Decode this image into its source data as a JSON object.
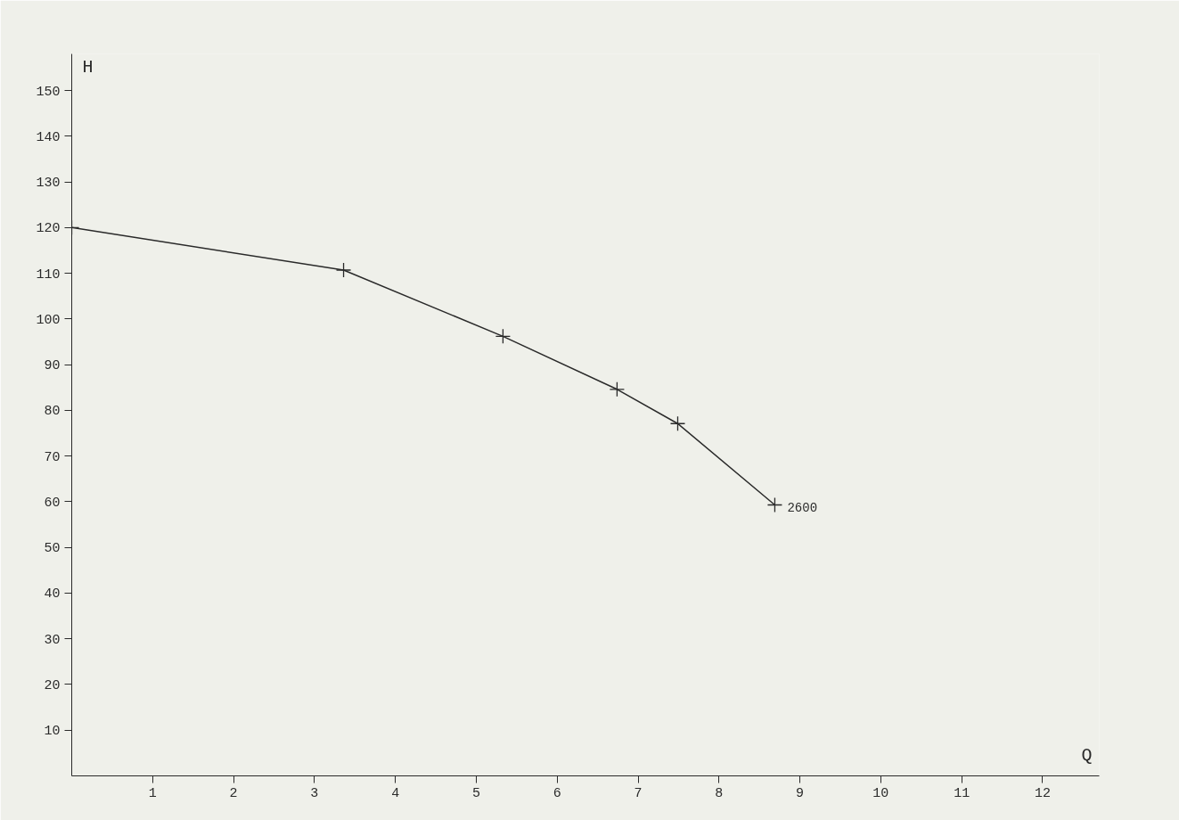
{
  "chart_data": {
    "type": "line",
    "xlabel": "Q",
    "ylabel": "H",
    "x": [
      0,
      3.36,
      5.33,
      6.74,
      7.49,
      8.69
    ],
    "series": [
      {
        "color": "#2a2a2a",
        "values": [
          120,
          110.7,
          96.2,
          84.6,
          77.1,
          59.3
        ]
      }
    ],
    "xlim": [
      0,
      12.7
    ],
    "ylim": [
      0,
      158
    ],
    "xticks": [
      1,
      2,
      3,
      4,
      5,
      6,
      7,
      8,
      9,
      10,
      11,
      12
    ],
    "yticks": [
      10,
      20,
      30,
      40,
      50,
      60,
      70,
      80,
      90,
      100,
      110,
      120,
      130,
      140,
      150
    ],
    "grid": false,
    "marker": "cross",
    "line_style": "solid",
    "annotations": [
      {
        "text": "2600",
        "x": 8.69,
        "y": 59.3
      }
    ]
  }
}
